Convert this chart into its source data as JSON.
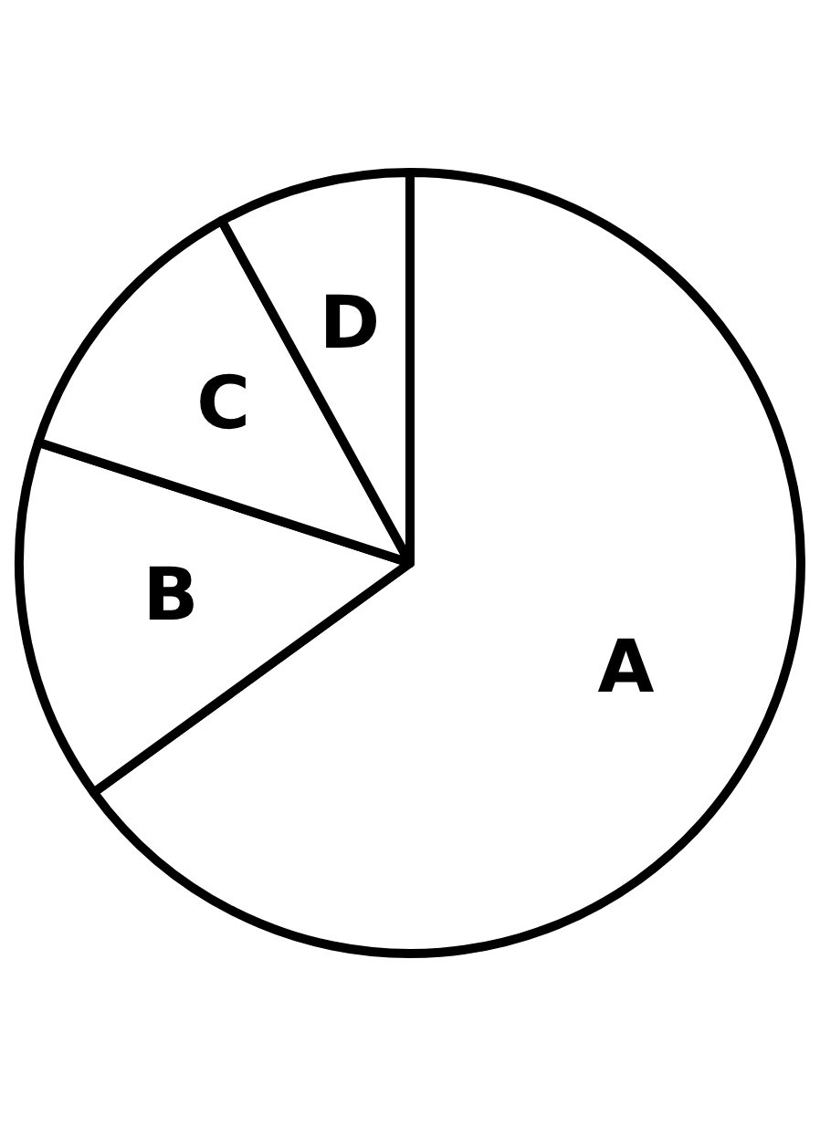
{
  "chart_data": {
    "type": "pie",
    "categories": [
      "A",
      "B",
      "C",
      "D"
    ],
    "values": [
      65,
      15,
      12,
      8
    ],
    "colors": [
      "#ffffff",
      "#ffffff",
      "#ffffff",
      "#ffffff"
    ],
    "legend": false
  }
}
